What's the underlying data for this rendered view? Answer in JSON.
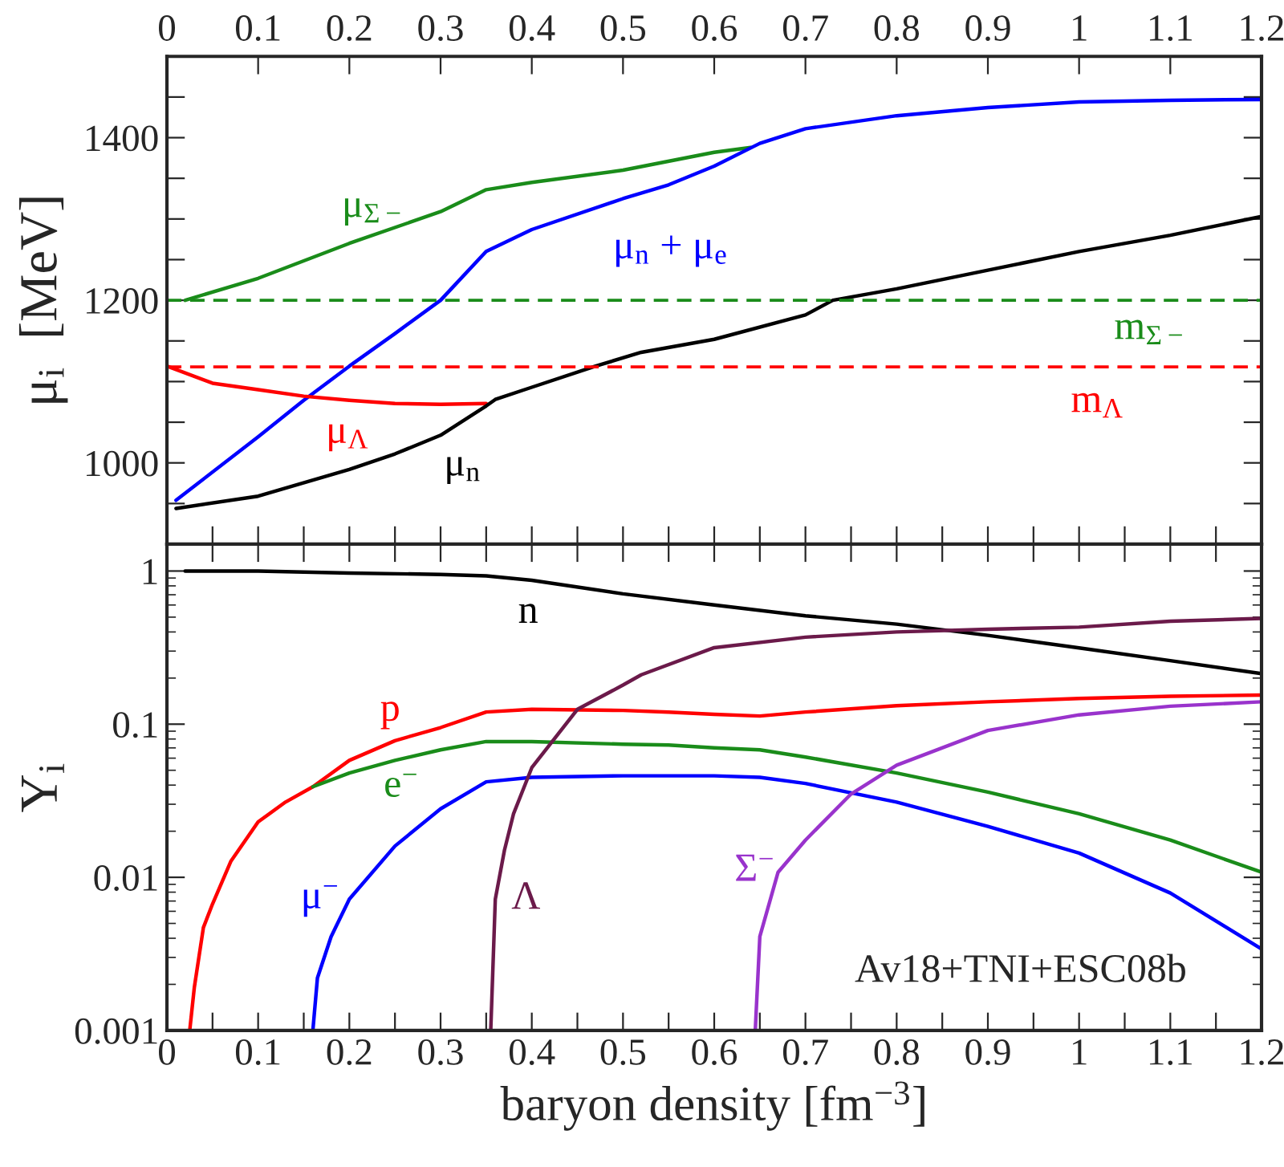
{
  "chart_data": [
    {
      "type": "line",
      "ylabel": "μ$_{i}$  [MeV]",
      "xlim": [
        0,
        1.2
      ],
      "xticks": [
        {
          "value": 0,
          "label": null
        },
        {
          "value": 0.05,
          "label": null
        },
        {
          "value": 0.1,
          "label": null
        },
        {
          "value": 0.15,
          "label": null
        },
        {
          "value": 0.2,
          "label": null
        },
        {
          "value": 0.25,
          "label": null
        },
        {
          "value": 0.3,
          "label": null
        },
        {
          "value": 0.35,
          "label": null
        },
        {
          "value": 0.4,
          "label": null
        },
        {
          "value": 0.45,
          "label": null
        },
        {
          "value": 0.5,
          "label": null
        },
        {
          "value": 0.55,
          "label": null
        },
        {
          "value": 0.6,
          "label": null
        },
        {
          "value": 0.65,
          "label": null
        },
        {
          "value": 0.7,
          "label": null
        },
        {
          "value": 0.75,
          "label": null
        },
        {
          "value": 0.8,
          "label": null
        },
        {
          "value": 0.85,
          "label": null
        },
        {
          "value": 0.9,
          "label": null
        },
        {
          "value": 0.95,
          "label": null
        },
        {
          "value": 1,
          "label": null
        },
        {
          "value": 1.05,
          "label": null
        },
        {
          "value": 1.1,
          "label": null
        },
        {
          "value": 1.15,
          "label": null
        },
        {
          "value": 1.2,
          "label": null
        }
      ],
      "x2lim": [
        0,
        1.2
      ],
      "x2ticks": [
        0,
        0.1,
        0.2,
        0.3,
        0.4,
        0.5,
        0.6,
        0.7,
        0.8,
        0.9,
        1,
        1.1,
        1.2
      ],
      "ylim": [
        900,
        1500
      ],
      "yticks": [
        {
          "value": 950,
          "label": null
        },
        1000,
        {
          "value": 1050,
          "label": null
        },
        {
          "value": 1100,
          "label": null
        },
        {
          "value": 1150,
          "label": null
        },
        1200,
        {
          "value": 1250,
          "label": null
        },
        {
          "value": 1300,
          "label": null
        },
        {
          "value": 1350,
          "label": null
        },
        1400,
        {
          "value": 1450,
          "label": null
        }
      ],
      "tick_labels": "y",
      "series": [
        {
          "name": "μ$_{Σ−}$",
          "color": "#1a8c1a",
          "x": [
            0.02,
            0.1,
            0.2,
            0.3,
            0.35,
            0.4,
            0.5,
            0.6,
            0.64
          ],
          "values": [
            1200,
            1227,
            1270,
            1309,
            1336,
            1345,
            1360,
            1382,
            1388
          ]
        },
        {
          "name": "μ$_{n}$ + μ$_{e}$",
          "color": "#0000ff",
          "x": [
            0.01,
            0.1,
            0.15,
            0.2,
            0.25,
            0.3,
            0.35,
            0.4,
            0.5,
            0.55,
            0.6,
            0.65,
            0.7,
            0.8,
            0.9,
            1.0,
            1.1,
            1.2
          ],
          "values": [
            954,
            1032,
            1077,
            1119,
            1159,
            1200,
            1260,
            1287,
            1325,
            1342,
            1365,
            1393,
            1411,
            1427,
            1437,
            1444,
            1446,
            1447
          ]
        },
        {
          "name": "μ$_{Λ}$",
          "color": "#ff0000",
          "x": [
            0,
            0.05,
            0.1,
            0.15,
            0.2,
            0.25,
            0.3,
            0.35
          ],
          "values": [
            1119,
            1098,
            1090,
            1082,
            1077,
            1073,
            1072,
            1073
          ]
        },
        {
          "name": "μ$_{n}$",
          "color": "#000000",
          "x": [
            0.01,
            0.1,
            0.2,
            0.25,
            0.3,
            0.35,
            0.36,
            0.4,
            0.47,
            0.52,
            0.6,
            0.7,
            0.73,
            0.8,
            0.9,
            1.0,
            1.1,
            1.2
          ],
          "values": [
            944,
            959,
            992,
            1011,
            1034,
            1070,
            1078,
            1093,
            1119,
            1136,
            1152,
            1182,
            1200,
            1214,
            1237,
            1260,
            1280,
            1303
          ]
        }
      ],
      "ref_lines": [
        {
          "axis": "y",
          "value": 1200,
          "label": "m$_{Σ−}$",
          "color": "#1a8c1a",
          "line_style": "dashed"
        },
        {
          "axis": "y",
          "value": 1118,
          "label": "m$_{Λ}$",
          "color": "#ff0000",
          "line_style": "dashed"
        }
      ]
    },
    {
      "type": "line",
      "xlabel": "baryon density [fm$^{−3}$]",
      "ylabel": "Y$_{i}$",
      "log": "y",
      "xlim": [
        0,
        1.2
      ],
      "xticks": [
        0,
        {
          "value": 0.05,
          "label": null
        },
        0.1,
        {
          "value": 0.15,
          "label": null
        },
        0.2,
        {
          "value": 0.25,
          "label": null
        },
        0.3,
        {
          "value": 0.35,
          "label": null
        },
        0.4,
        {
          "value": 0.45,
          "label": null
        },
        0.5,
        {
          "value": 0.55,
          "label": null
        },
        0.6,
        {
          "value": 0.65,
          "label": null
        },
        0.7,
        {
          "value": 0.75,
          "label": null
        },
        0.8,
        {
          "value": 0.85,
          "label": null
        },
        0.9,
        {
          "value": 0.95,
          "label": null
        },
        1,
        {
          "value": 1.05,
          "label": null
        },
        1.1,
        {
          "value": 1.15,
          "label": null
        },
        1.2
      ],
      "ylim": [
        0.001,
        1.5
      ],
      "yticks": [
        0.001,
        0.01,
        0.1,
        1
      ],
      "series": [
        {
          "name": "n",
          "color": "#000000",
          "x": [
            0.02,
            0.1,
            0.2,
            0.3,
            0.35,
            0.4,
            0.5,
            0.6,
            0.7,
            0.8,
            0.9,
            1.0,
            1.1,
            1.2
          ],
          "values": [
            1.0,
            1.0,
            0.97,
            0.95,
            0.93,
            0.87,
            0.71,
            0.6,
            0.51,
            0.45,
            0.38,
            0.315,
            0.26,
            0.214
          ]
        },
        {
          "name": "p",
          "color": "#ff0000",
          "x": [
            0.025,
            0.03,
            0.04,
            0.05,
            0.07,
            0.1,
            0.13,
            0.16,
            0.2,
            0.25,
            0.3,
            0.35,
            0.4,
            0.5,
            0.55,
            0.6,
            0.65,
            0.7,
            0.8,
            0.9,
            1.0,
            1.1,
            1.2
          ],
          "values": [
            0.001,
            0.0019,
            0.0047,
            0.0067,
            0.0127,
            0.023,
            0.031,
            0.039,
            0.058,
            0.078,
            0.095,
            0.12,
            0.125,
            0.123,
            0.12,
            0.116,
            0.113,
            0.12,
            0.132,
            0.14,
            0.147,
            0.152,
            0.155
          ]
        },
        {
          "name": "e$^{−}$",
          "color": "#1a8c1a",
          "x": [
            0.16,
            0.2,
            0.25,
            0.3,
            0.35,
            0.4,
            0.5,
            0.55,
            0.6,
            0.65,
            0.7,
            0.8,
            0.9,
            1.0,
            1.1,
            1.2
          ],
          "values": [
            0.039,
            0.048,
            0.058,
            0.068,
            0.077,
            0.077,
            0.074,
            0.073,
            0.07,
            0.068,
            0.061,
            0.048,
            0.036,
            0.026,
            0.0175,
            0.0108
          ]
        },
        {
          "name": "μ$^{−}$",
          "color": "#0000ff",
          "x": [
            0.16,
            0.165,
            0.18,
            0.2,
            0.25,
            0.3,
            0.35,
            0.4,
            0.5,
            0.6,
            0.65,
            0.7,
            0.8,
            0.9,
            1.0,
            1.1,
            1.2
          ],
          "values": [
            0.001,
            0.0022,
            0.0041,
            0.0072,
            0.016,
            0.028,
            0.042,
            0.045,
            0.046,
            0.046,
            0.045,
            0.041,
            0.031,
            0.0215,
            0.0144,
            0.0079,
            0.0034
          ]
        },
        {
          "name": "Λ",
          "color": "#6b1a4a",
          "x": [
            0.355,
            0.36,
            0.37,
            0.38,
            0.4,
            0.45,
            0.5,
            0.52,
            0.6,
            0.7,
            0.8,
            0.9,
            1.0,
            1.1,
            1.2
          ],
          "values": [
            0.001,
            0.0072,
            0.015,
            0.026,
            0.052,
            0.125,
            0.18,
            0.21,
            0.316,
            0.37,
            0.4,
            0.417,
            0.43,
            0.47,
            0.49
          ]
        },
        {
          "name": "Σ$^{−}$",
          "color": "#9933cc",
          "x": [
            0.645,
            0.65,
            0.67,
            0.7,
            0.75,
            0.8,
            0.9,
            1.0,
            1.1,
            1.2
          ],
          "values": [
            0.001,
            0.0041,
            0.0108,
            0.0175,
            0.035,
            0.054,
            0.091,
            0.115,
            0.131,
            0.14
          ]
        }
      ],
      "annotations": [
        "Av18+TNI+ESC08b"
      ]
    }
  ]
}
